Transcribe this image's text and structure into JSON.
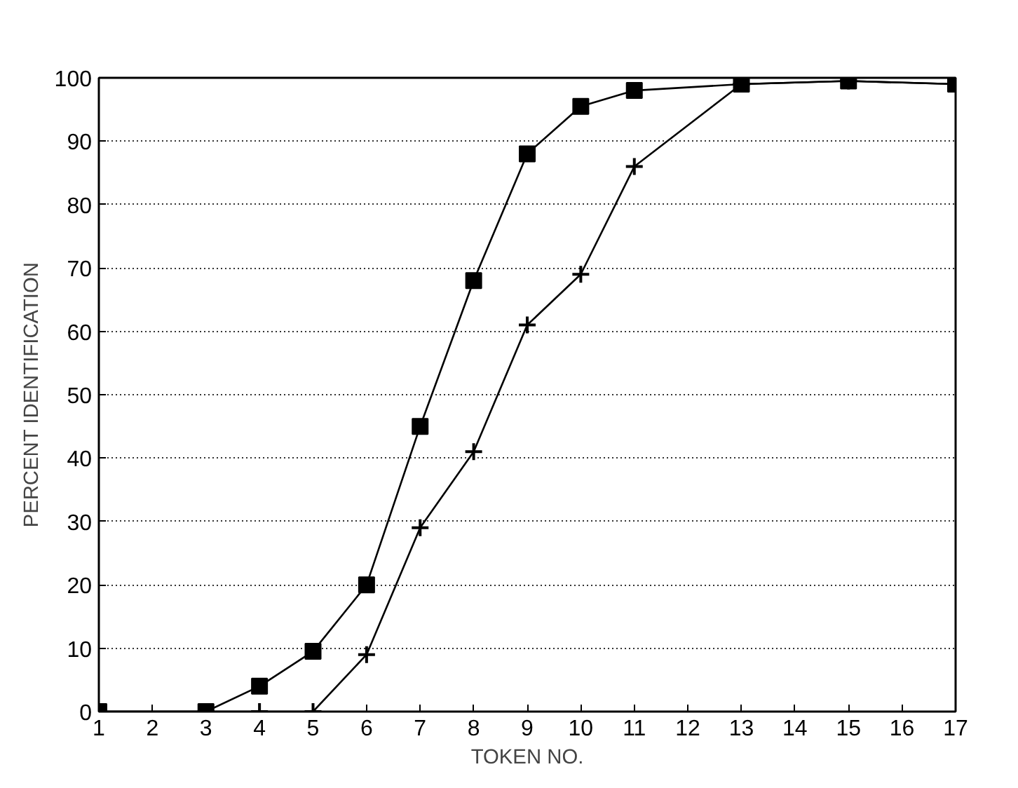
{
  "chart_data": {
    "type": "line",
    "xlabel": "TOKEN NO.",
    "ylabel": "PERCENT IDENTIFICATION",
    "x": [
      1,
      3,
      4,
      5,
      6,
      7,
      8,
      9,
      10,
      11,
      13,
      15,
      17
    ],
    "series": [
      {
        "color": "#000000",
        "marker": "square",
        "values": [
          0,
          0,
          4,
          9.5,
          20,
          45,
          68,
          88,
          95.5,
          98,
          99,
          99.5,
          99
        ]
      },
      {
        "color": "#000000",
        "marker": "cross",
        "values": [
          0,
          0,
          0,
          0,
          9,
          29,
          41,
          61,
          69,
          86,
          99,
          99.5,
          99
        ]
      }
    ],
    "xlim": [
      1,
      17
    ],
    "ylim": [
      0,
      100
    ],
    "xticks": [
      1,
      2,
      3,
      4,
      5,
      6,
      7,
      8,
      9,
      10,
      11,
      12,
      13,
      14,
      15,
      16,
      17
    ],
    "yticks": [
      0,
      10,
      20,
      30,
      40,
      50,
      60,
      70,
      80,
      90,
      100
    ],
    "grid": "y",
    "line_style": "solid"
  }
}
